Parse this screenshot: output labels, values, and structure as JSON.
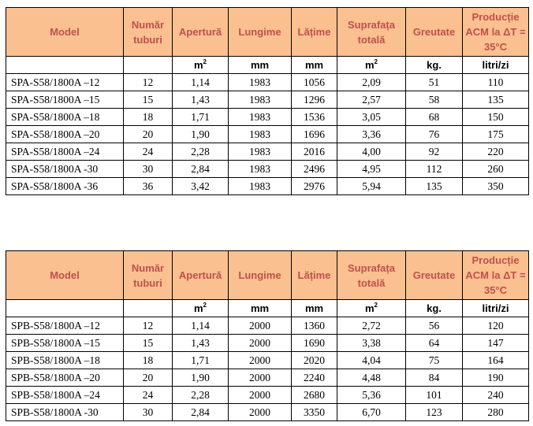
{
  "columns": [
    "Model",
    "Număr tuburi",
    "Apertură",
    "Lungime",
    "Lățime",
    "Suprafața totală",
    "Greutate",
    "Producție ACM la ΔT = 35°C"
  ],
  "units": [
    "",
    "",
    "m",
    "mm",
    "mm",
    "m",
    "kg.",
    "litri/zi"
  ],
  "units_sup": [
    "",
    "",
    "2",
    "",
    "",
    "2",
    "",
    ""
  ],
  "table_a": {
    "rows": [
      [
        "SPA-S58/1800A –12",
        "12",
        "1,14",
        "1983",
        "1056",
        "2,09",
        "51",
        "110"
      ],
      [
        "SPA-S58/1800A –15",
        "15",
        "1,43",
        "1983",
        "1296",
        "2,57",
        "58",
        "135"
      ],
      [
        "SPA-S58/1800A –18",
        "18",
        "1,71",
        "1983",
        "1536",
        "3,05",
        "68",
        "150"
      ],
      [
        "SPA-S58/1800A –20",
        "20",
        "1,90",
        "1983",
        "1696",
        "3,36",
        "76",
        "175"
      ],
      [
        "SPA-S58/1800A –24",
        "24",
        "2,28",
        "1983",
        "2016",
        "4,00",
        "92",
        "220"
      ],
      [
        "SPA-S58/1800A -30",
        "30",
        "2,84",
        "1983",
        "2496",
        "4,95",
        "112",
        "260"
      ],
      [
        "SPA-S58/1800A -36",
        "36",
        "3,42",
        "1983",
        "2976",
        "5,94",
        "135",
        "350"
      ]
    ]
  },
  "table_b": {
    "rows": [
      [
        "SPB-S58/1800A –12",
        "12",
        "1,14",
        "2000",
        "1360",
        "2,72",
        "56",
        "120"
      ],
      [
        "SPB-S58/1800A –15",
        "15",
        "1,43",
        "2000",
        "1690",
        "3,38",
        "64",
        "147"
      ],
      [
        "SPB-S58/1800A –18",
        "18",
        "1,71",
        "2000",
        "2020",
        "4,04",
        "75",
        "164"
      ],
      [
        "SPB-S58/1800A –20",
        "20",
        "1,90",
        "2000",
        "2240",
        "4,48",
        "84",
        "190"
      ],
      [
        "SPB-S58/1800A –24",
        "24",
        "2,28",
        "2000",
        "2680",
        "5,36",
        "101",
        "240"
      ],
      [
        "SPB-S58/1800A -30",
        "30",
        "2,84",
        "2000",
        "3350",
        "6,70",
        "123",
        "280"
      ]
    ]
  },
  "colors": {
    "header_bg": "#fac090",
    "header_text": "#c0504d",
    "border": "#000000"
  }
}
